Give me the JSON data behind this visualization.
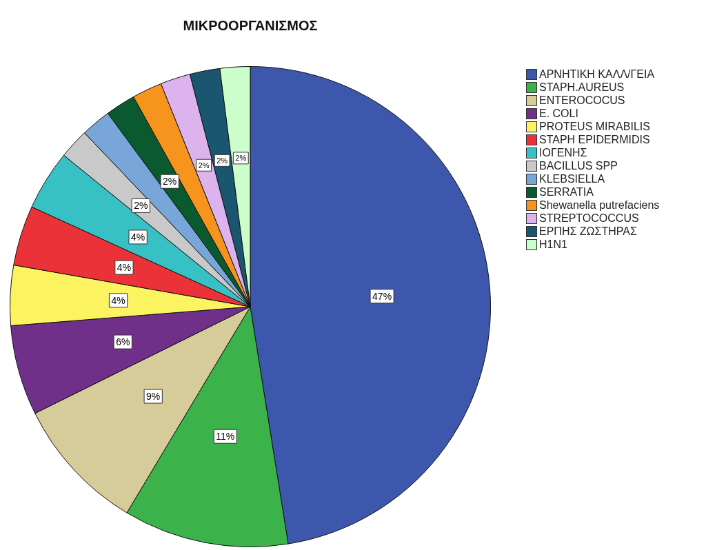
{
  "chart_data": {
    "type": "pie",
    "title": "ΜΙΚΡΟΟΡΓΑΝΙΣΜΟΣ",
    "categories": [
      "ΑΡΝΗΤΙΚΗ ΚΑΛΛ/ΓΕΙΑ",
      "STAPH.AUREUS",
      "ENTEROCOCUS",
      "E. COLI",
      "PROTEUS MIRABILIS",
      "STAPH EPIDERMIDIS",
      "ΙΟΓΕΝΗΣ",
      "BACILLUS SPP",
      "KLEBSIELLA",
      "SERRATIA",
      "Shewanella putrefaciens",
      "STREPTOCOCCUS",
      "ΕΡΠΗΣ ΖΩΣΤΗΡΑΣ",
      "H1N1"
    ],
    "values": [
      47,
      11,
      9,
      6,
      4,
      4,
      4,
      2,
      2,
      2,
      2,
      2,
      2,
      2
    ],
    "value_labels": [
      "47%",
      "11%",
      "9%",
      "6%",
      "4%",
      "4%",
      "4%",
      "2%",
      null,
      "2%",
      null,
      "2%",
      "2%",
      "2%"
    ],
    "colors": [
      "#3c57ab",
      "#3bb34a",
      "#d5cc9a",
      "#70308a",
      "#fbf35f",
      "#ec3239",
      "#38c1c4",
      "#c9c9c9",
      "#78a6d8",
      "#0b5a2f",
      "#f7941d",
      "#ddb3ee",
      "#1b5670",
      "#ccfecc"
    ],
    "legend": "right"
  }
}
